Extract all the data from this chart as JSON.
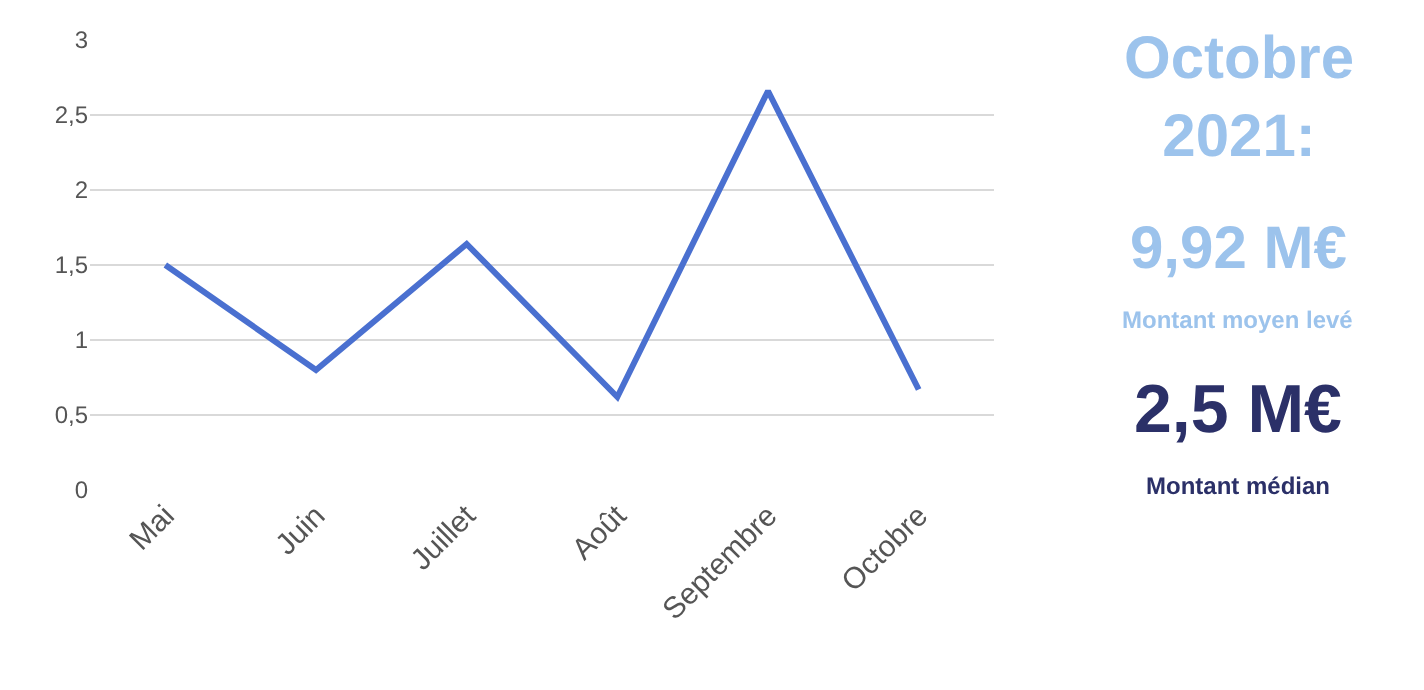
{
  "chart_data": {
    "type": "line",
    "categories": [
      "Mai",
      "Juin",
      "Juillet",
      "Août",
      "Septembre",
      "Octobre"
    ],
    "series": [
      {
        "color": "#4a70d0",
        "values": [
          1.5,
          0.8,
          1.64,
          0.62,
          2.66,
          0.67
        ]
      }
    ],
    "ylim": [
      0,
      3
    ],
    "yticks": [
      0,
      {
        "value": 0.5,
        "label": "0,5"
      },
      1,
      {
        "value": 1.5,
        "label": "1,5"
      },
      2,
      {
        "value": 2.5,
        "label": "2,5"
      },
      3
    ],
    "grid": "y",
    "marker": "none",
    "line_style": "solid",
    "annotations": [
      "Octobre 2021:",
      "9,92 M€",
      "Montant moyen levé",
      "2,5 M€",
      "Montant médian"
    ]
  }
}
